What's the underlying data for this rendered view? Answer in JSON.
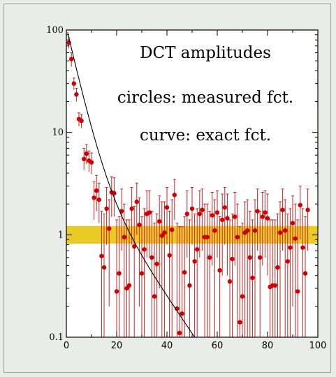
{
  "chart_data": {
    "type": "scatter",
    "xlim": [
      0,
      100
    ],
    "ylim": [
      0.1,
      100
    ],
    "y_scale": "log",
    "grid": false,
    "x_ticks": [
      0,
      20,
      40,
      60,
      80,
      100
    ],
    "y_ticks": [
      0.1,
      1,
      10,
      100
    ],
    "x_tick_labels": [
      "0",
      "20",
      "40",
      "60",
      "80",
      "100"
    ],
    "y_tick_labels": [
      "0.1",
      "1",
      "10",
      "100"
    ],
    "annotations": [
      "DCT amplitudes",
      "circles: measured fct.",
      "curve: exact fct."
    ],
    "band": {
      "y_low": 0.82,
      "y_high": 1.22,
      "color": "#e6c200"
    },
    "curve_color": "#000000",
    "point_color": "#cc0000",
    "errorbar_color": "#cc2222",
    "points": [
      [
        1,
        75,
        84,
        66
      ],
      [
        2,
        52,
        60,
        44
      ],
      [
        3,
        30,
        34,
        26
      ],
      [
        4,
        23.5,
        27,
        20
      ],
      [
        5,
        13.5,
        15.5,
        11.5
      ],
      [
        6,
        13,
        15,
        11
      ],
      [
        7,
        5.5,
        7,
        4.3
      ],
      [
        8,
        6.2,
        7.6,
        4.9
      ],
      [
        9,
        5.3,
        6.6,
        4.1
      ],
      [
        10,
        5.1,
        6.3,
        3.9
      ],
      [
        11,
        2.3,
        3.3,
        1.4
      ],
      [
        12,
        2.7,
        3.8,
        1.7
      ],
      [
        13,
        2.2,
        3.2,
        1.3
      ],
      [
        14,
        0.62,
        1.7,
        0.1
      ],
      [
        15,
        0.48,
        1.6,
        0.1
      ],
      [
        16,
        1.8,
        2.9,
        0.8
      ],
      [
        17,
        1.15,
        2.2,
        0.2
      ],
      [
        18,
        2.6,
        3.7,
        1.5
      ],
      [
        19,
        2.55,
        3.6,
        1.5
      ],
      [
        20,
        0.28,
        1.4,
        0.1
      ],
      [
        21,
        0.42,
        1.5,
        0.1
      ],
      [
        22,
        1.7,
        2.8,
        0.7
      ],
      [
        23,
        0.95,
        2.0,
        0.1
      ],
      [
        24,
        0.3,
        1.4,
        0.1
      ],
      [
        25,
        0.32,
        1.4,
        0.1
      ],
      [
        26,
        1.8,
        2.9,
        0.8
      ],
      [
        27,
        0.77,
        1.9,
        0.1
      ],
      [
        28,
        2.1,
        3.2,
        1.0
      ],
      [
        29,
        1.25,
        2.3,
        0.2
      ],
      [
        30,
        0.42,
        1.5,
        0.1
      ],
      [
        31,
        0.72,
        1.8,
        0.1
      ],
      [
        32,
        1.6,
        2.7,
        0.6
      ],
      [
        33,
        1.65,
        2.7,
        0.6
      ],
      [
        34,
        0.6,
        1.7,
        0.1
      ],
      [
        35,
        0.25,
        1.3,
        0.1
      ],
      [
        36,
        0.52,
        1.6,
        0.1
      ],
      [
        37,
        1.35,
        2.4,
        0.3
      ],
      [
        38,
        0.98,
        2.1,
        0.1
      ],
      [
        39,
        1.05,
        2.1,
        0.1
      ],
      [
        40,
        1.85,
        2.9,
        0.8
      ],
      [
        41,
        0.63,
        1.7,
        0.1
      ],
      [
        42,
        1.12,
        2.2,
        0.1
      ],
      [
        43,
        2.45,
        3.5,
        1.4
      ],
      [
        44,
        0.19,
        1.3,
        0.1
      ],
      [
        45,
        0.11,
        1.2,
        0.1
      ],
      [
        46,
        0.17,
        1.2,
        0.1
      ],
      [
        47,
        0.43,
        1.5,
        0.1
      ],
      [
        48,
        1.6,
        2.7,
        0.6
      ],
      [
        49,
        0.32,
        1.4,
        0.1
      ],
      [
        50,
        1.8,
        2.9,
        0.8
      ],
      [
        51,
        0.55,
        1.6,
        0.1
      ],
      [
        52,
        0.72,
        1.8,
        0.1
      ],
      [
        53,
        1.6,
        2.7,
        0.6
      ],
      [
        54,
        1.75,
        2.8,
        0.7
      ],
      [
        55,
        0.95,
        2.0,
        0.1
      ],
      [
        56,
        0.95,
        2.0,
        0.1
      ],
      [
        57,
        0.6,
        1.7,
        0.1
      ],
      [
        58,
        1.55,
        2.6,
        0.5
      ],
      [
        59,
        1.1,
        2.2,
        0.1
      ],
      [
        60,
        1.65,
        2.7,
        0.6
      ],
      [
        61,
        0.45,
        1.5,
        0.1
      ],
      [
        62,
        1.4,
        2.5,
        0.4
      ],
      [
        63,
        1.85,
        2.9,
        0.8
      ],
      [
        64,
        1.45,
        2.5,
        0.4
      ],
      [
        65,
        0.35,
        1.4,
        0.1
      ],
      [
        66,
        0.58,
        1.6,
        0.1
      ],
      [
        67,
        1.5,
        2.6,
        0.5
      ],
      [
        68,
        0.95,
        2.0,
        0.1
      ],
      [
        69,
        0.14,
        1.2,
        0.1
      ],
      [
        70,
        0.25,
        1.3,
        0.1
      ],
      [
        71,
        1.05,
        2.1,
        0.1
      ],
      [
        72,
        1.1,
        2.2,
        0.1
      ],
      [
        73,
        0.6,
        1.7,
        0.1
      ],
      [
        74,
        0.38,
        1.4,
        0.1
      ],
      [
        75,
        1.1,
        2.2,
        0.1
      ],
      [
        76,
        1.7,
        2.8,
        0.7
      ],
      [
        77,
        0.6,
        1.7,
        0.1
      ],
      [
        78,
        1.5,
        2.6,
        0.5
      ],
      [
        79,
        1.65,
        2.7,
        0.6
      ],
      [
        80,
        1.45,
        2.5,
        0.4
      ],
      [
        81,
        0.31,
        1.4,
        0.1
      ],
      [
        82,
        0.32,
        1.4,
        0.1
      ],
      [
        83,
        0.32,
        1.4,
        0.1
      ],
      [
        84,
        0.48,
        1.6,
        0.1
      ],
      [
        85,
        1.05,
        2.1,
        0.1
      ],
      [
        86,
        1.75,
        2.8,
        0.7
      ],
      [
        87,
        1.1,
        2.2,
        0.1
      ],
      [
        88,
        0.55,
        1.6,
        0.1
      ],
      [
        89,
        0.75,
        1.8,
        0.1
      ],
      [
        90,
        1.3,
        2.4,
        0.2
      ],
      [
        91,
        0.92,
        2.0,
        0.1
      ],
      [
        92,
        0.28,
        1.4,
        0.1
      ],
      [
        93,
        1.95,
        3.0,
        0.9
      ],
      [
        94,
        0.75,
        1.8,
        0.1
      ],
      [
        95,
        0.42,
        1.5,
        0.1
      ],
      [
        96,
        1.75,
        2.8,
        0.7
      ]
    ]
  }
}
